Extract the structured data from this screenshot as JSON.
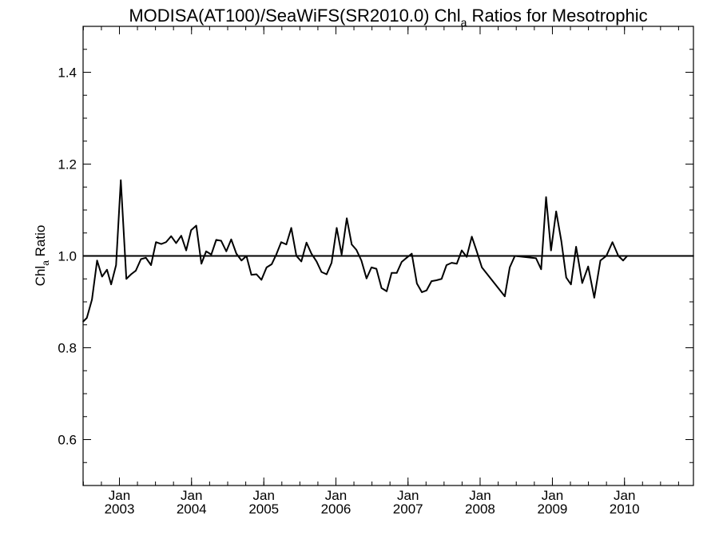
{
  "chart_data": {
    "type": "line",
    "title": {
      "prefix": "MODISA(AT100)/SeaWiFS(SR2010.0)  Chl",
      "subscript": "a",
      "suffix": " Ratios for Mesotrophic"
    },
    "ylabel": {
      "prefix": "Chl",
      "subscript": "a",
      "suffix": " Ratio"
    },
    "xlabel": "",
    "xlim": [
      "2002-07-01",
      "2010-12-16"
    ],
    "ylim": [
      0.5,
      1.5
    ],
    "yticks": [
      0.6,
      0.8,
      1.0,
      1.2,
      1.4
    ],
    "yticklabels": [
      "0.6",
      "0.8",
      "1.0",
      "1.2",
      "1.4"
    ],
    "xticks": [
      {
        "date": "2003-01-01",
        "month": "Jan",
        "year": "2003"
      },
      {
        "date": "2004-01-01",
        "month": "Jan",
        "year": "2004"
      },
      {
        "date": "2005-01-01",
        "month": "Jan",
        "year": "2005"
      },
      {
        "date": "2006-01-01",
        "month": "Jan",
        "year": "2006"
      },
      {
        "date": "2007-01-01",
        "month": "Jan",
        "year": "2007"
      },
      {
        "date": "2008-01-01",
        "month": "Jan",
        "year": "2008"
      },
      {
        "date": "2009-01-01",
        "month": "Jan",
        "year": "2009"
      },
      {
        "date": "2010-01-01",
        "month": "Jan",
        "year": "2010"
      }
    ],
    "reference_line": 1.0,
    "grid": false,
    "series": [
      {
        "x": [
          "2002-07-01",
          "2002-07-20",
          "2002-08-15",
          "2002-09-10",
          "2002-10-05",
          "2002-10-30",
          "2002-11-20",
          "2002-12-15",
          "2003-01-08",
          "2003-02-05",
          "2003-03-01",
          "2003-03-25",
          "2003-04-20",
          "2003-05-15",
          "2003-06-10",
          "2003-07-05",
          "2003-08-01",
          "2003-08-25",
          "2003-09-20",
          "2003-10-15",
          "2003-11-10",
          "2003-12-05",
          "2003-12-30",
          "2004-01-25",
          "2004-02-20",
          "2004-03-15",
          "2004-04-10",
          "2004-05-05",
          "2004-05-30",
          "2004-06-25",
          "2004-07-20",
          "2004-08-15",
          "2004-09-10",
          "2004-10-05",
          "2004-10-30",
          "2004-11-25",
          "2004-12-20",
          "2005-01-15",
          "2005-02-10",
          "2005-03-05",
          "2005-03-30",
          "2005-04-25",
          "2005-05-20",
          "2005-06-15",
          "2005-07-10",
          "2005-08-05",
          "2005-08-30",
          "2005-09-25",
          "2005-10-20",
          "2005-11-15",
          "2005-12-10",
          "2006-01-05",
          "2006-01-30",
          "2006-02-25",
          "2006-03-22",
          "2006-04-15",
          "2006-05-10",
          "2006-06-05",
          "2006-06-30",
          "2006-07-25",
          "2006-08-20",
          "2006-09-15",
          "2006-10-10",
          "2006-11-05",
          "2006-11-30",
          "2006-12-25",
          "2007-01-20",
          "2007-02-15",
          "2007-03-12",
          "2007-04-05",
          "2007-04-30",
          "2007-05-25",
          "2007-06-20",
          "2007-07-15",
          "2007-08-10",
          "2007-09-05",
          "2007-09-30",
          "2007-10-25",
          "2007-11-20",
          "2007-12-15",
          "2008-01-10",
          "2008-05-05",
          "2008-05-30",
          "2008-06-25",
          "2008-10-10",
          "2008-11-05",
          "2008-11-30",
          "2008-12-25",
          "2009-01-20",
          "2009-02-15",
          "2009-03-12",
          "2009-04-05",
          "2009-05-01",
          "2009-06-01",
          "2009-07-01",
          "2009-08-01",
          "2009-09-01",
          "2009-10-01",
          "2009-11-01",
          "2009-12-01",
          "2009-12-25",
          "2010-01-15",
          "2010-02-05",
          "2010-03-01",
          "2010-03-25",
          "2010-04-20",
          "2010-05-15",
          "2010-06-10",
          "2010-07-05",
          "2010-08-01",
          "2010-08-25",
          "2010-09-20",
          "2010-10-15",
          "2010-11-10",
          "2010-12-16"
        ],
        "y": [
          0.857,
          0.865,
          0.905,
          0.99,
          0.955,
          0.97,
          0.938,
          0.98,
          1.165,
          0.95,
          0.96,
          0.968,
          0.993,
          0.996,
          0.98,
          1.03,
          1.026,
          1.03,
          1.043,
          1.028,
          1.044,
          1.012,
          1.056,
          1.066,
          0.983,
          1.01,
          1.003,
          1.035,
          1.033,
          1.01,
          1.036,
          1.005,
          0.99,
          1.0,
          0.959,
          0.96,
          0.948,
          0.975,
          0.982,
          1.003,
          1.03,
          1.025,
          1.061,
          1.0,
          0.988,
          1.029,
          1.005,
          0.988,
          0.965,
          0.96,
          0.985,
          1.061,
          1.003,
          1.082,
          1.025,
          1.013,
          0.99,
          0.951,
          0.975,
          0.972,
          0.93,
          0.923,
          0.963,
          0.963,
          0.987,
          0.996,
          1.005,
          0.94,
          0.921,
          0.925,
          0.945,
          0.947,
          0.95,
          0.98,
          0.985,
          0.983,
          1.012,
          0.998,
          1.042,
          1.01,
          0.975,
          0.912,
          0.975,
          1.0,
          0.995,
          0.971,
          1.128,
          1.012,
          1.097,
          1.033,
          0.953,
          0.938,
          1.02,
          0.941,
          0.977,
          0.909,
          0.99,
          1.0,
          1.03,
          1.0,
          0.99,
          1.0,
          1.0,
          1.0,
          1.0,
          1.0,
          1.0,
          1.0,
          1.0,
          1.0,
          1.0,
          1.0,
          1.0,
          1.0,
          1.0
        ]
      }
    ]
  }
}
